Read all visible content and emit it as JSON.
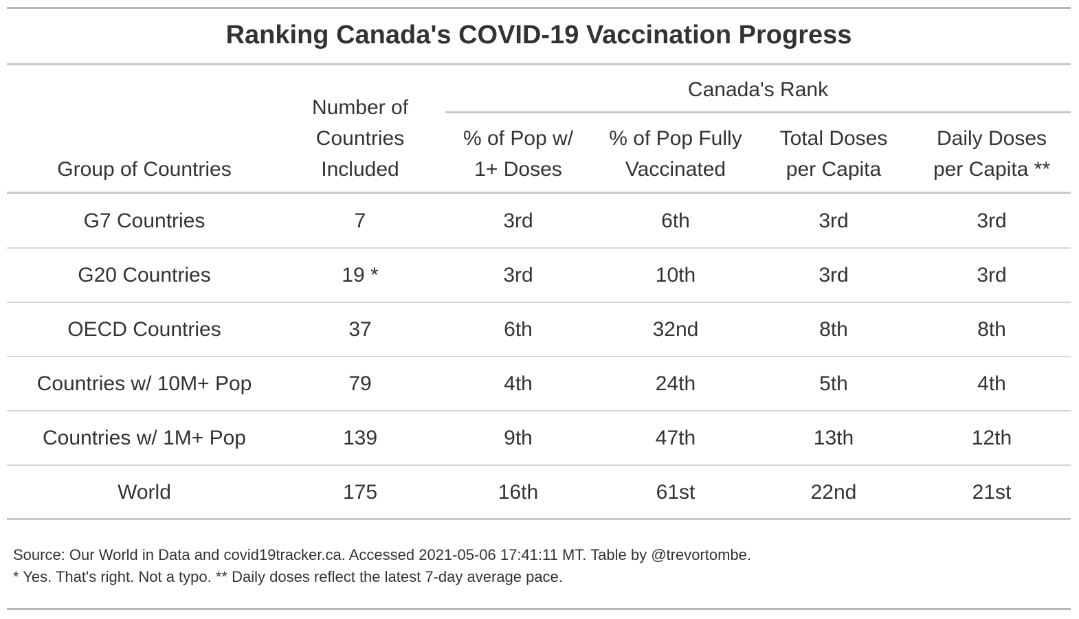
{
  "chart_data": {
    "type": "table",
    "title": "Ranking Canada's COVID-19 Vaccination Progress",
    "spanner": "Canada's Rank",
    "columns": [
      {
        "key": "group",
        "lines": [
          "Group of Countries"
        ]
      },
      {
        "key": "n",
        "lines": [
          "Number of",
          "Countries",
          "Included"
        ]
      },
      {
        "key": "one_dose",
        "lines": [
          "% of Pop w/",
          "1+ Doses"
        ]
      },
      {
        "key": "fully",
        "lines": [
          "% of Pop Fully",
          "Vaccinated"
        ]
      },
      {
        "key": "total",
        "lines": [
          "Total Doses",
          "per Capita"
        ]
      },
      {
        "key": "daily",
        "lines": [
          "Daily Doses",
          "per Capita **"
        ]
      }
    ],
    "rows": [
      {
        "group": "G7 Countries",
        "n": "7",
        "one_dose": "3rd",
        "fully": "6th",
        "total": "3rd",
        "daily": "3rd"
      },
      {
        "group": "G20 Countries",
        "n": "19 *",
        "one_dose": "3rd",
        "fully": "10th",
        "total": "3rd",
        "daily": "3rd"
      },
      {
        "group": "OECD Countries",
        "n": "37",
        "one_dose": "6th",
        "fully": "32nd",
        "total": "8th",
        "daily": "8th"
      },
      {
        "group": "Countries w/ 10M+ Pop",
        "n": "79",
        "one_dose": "4th",
        "fully": "24th",
        "total": "5th",
        "daily": "4th"
      },
      {
        "group": "Countries w/ 1M+ Pop",
        "n": "139",
        "one_dose": "9th",
        "fully": "47th",
        "total": "13th",
        "daily": "12th"
      },
      {
        "group": "World",
        "n": "175",
        "one_dose": "16th",
        "fully": "61st",
        "total": "22nd",
        "daily": "21st"
      }
    ],
    "source_note": "Source: Our World in Data and covid19tracker.ca. Accessed 2021-05-06 17:41:11 MT. Table by @trevortombe.",
    "footnote": "* Yes. That's right. Not a typo. ** Daily doses reflect the latest 7-day average pace."
  },
  "colors": {
    "text": "#333333",
    "heavy_rule": "#b8b8b8",
    "light_rule": "#d6d6d6"
  }
}
